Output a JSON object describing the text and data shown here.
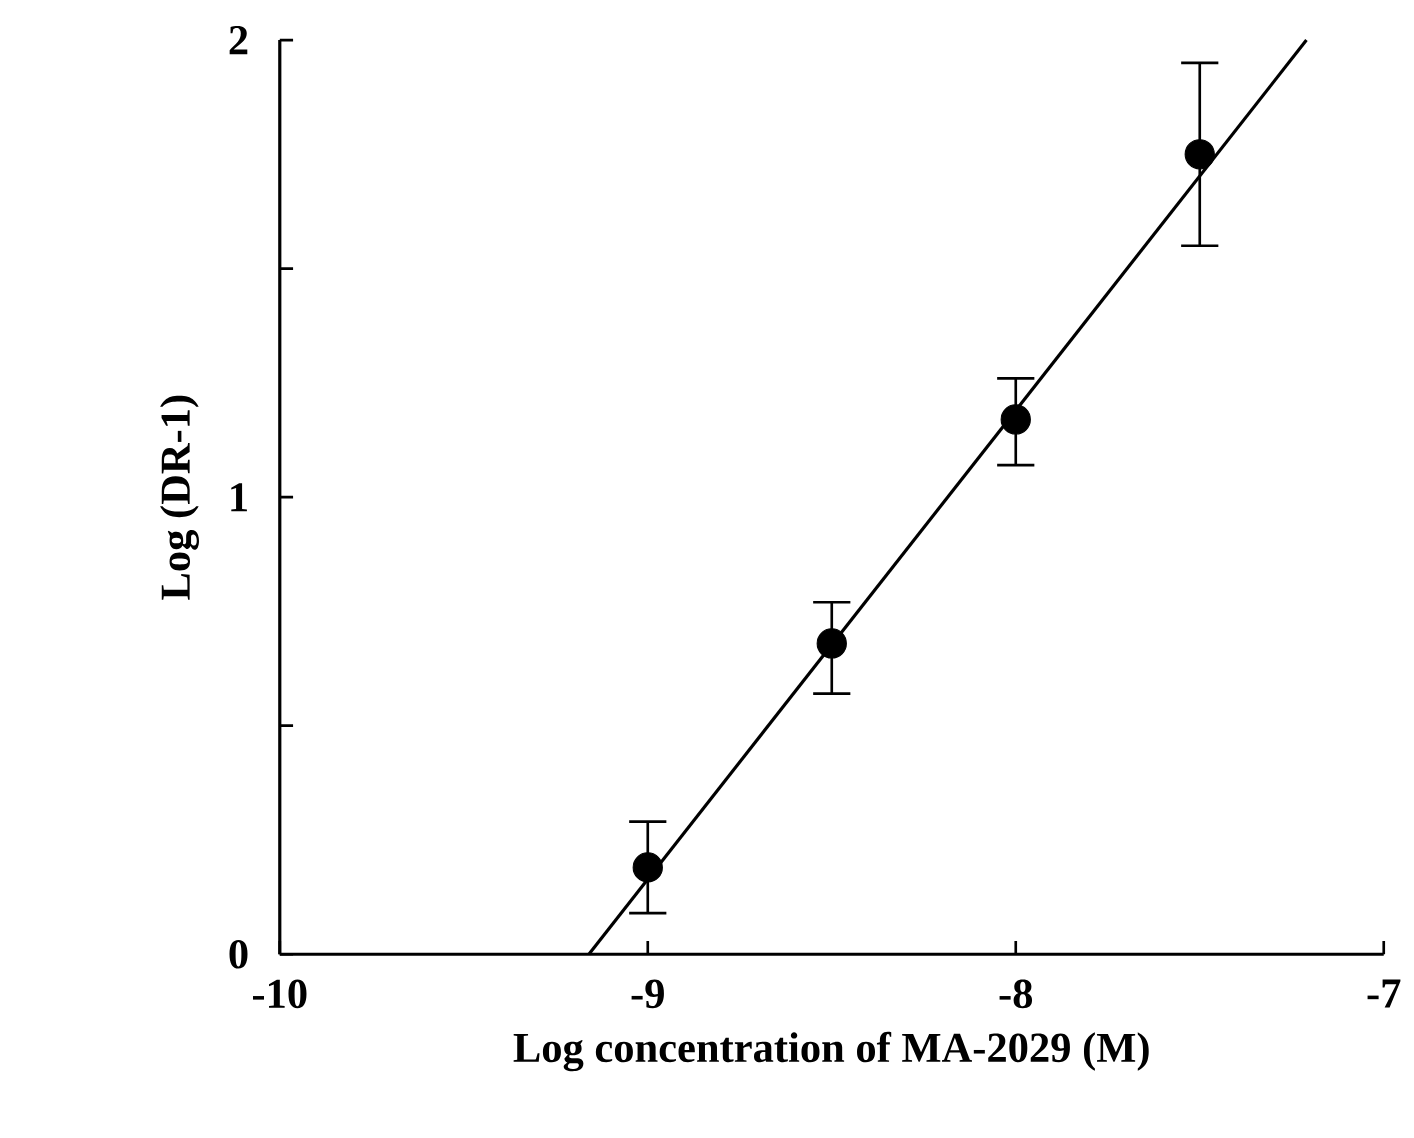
{
  "chart_data": {
    "type": "scatter",
    "xlabel": "Log concentration of MA-2029 (M)",
    "ylabel": "Log (DR-1)",
    "xlim": [
      -10,
      -7
    ],
    "xticks": [
      -10,
      -9,
      -8,
      -7
    ],
    "ylim": [
      0,
      2
    ],
    "yticks": [
      0,
      {
        "value": 0.5,
        "label": null
      },
      1,
      {
        "value": 1.5,
        "label": null
      },
      2
    ],
    "grid": false,
    "series": [
      {
        "color": "#000000",
        "marker": "circle",
        "x": [
          -9,
          -8.5,
          -8,
          -7.5
        ],
        "values": [
          0.19,
          0.68,
          1.17,
          1.75
        ],
        "errors": [
          [
            0.09,
            0.29
          ],
          [
            0.57,
            0.77
          ],
          [
            1.07,
            1.26
          ],
          [
            1.55,
            1.95
          ]
        ]
      },
      {
        "type": "line",
        "marker": "none",
        "color": "#000000",
        "x": [
          -9.16,
          -7.21
        ],
        "values": [
          0,
          2
        ]
      }
    ]
  }
}
